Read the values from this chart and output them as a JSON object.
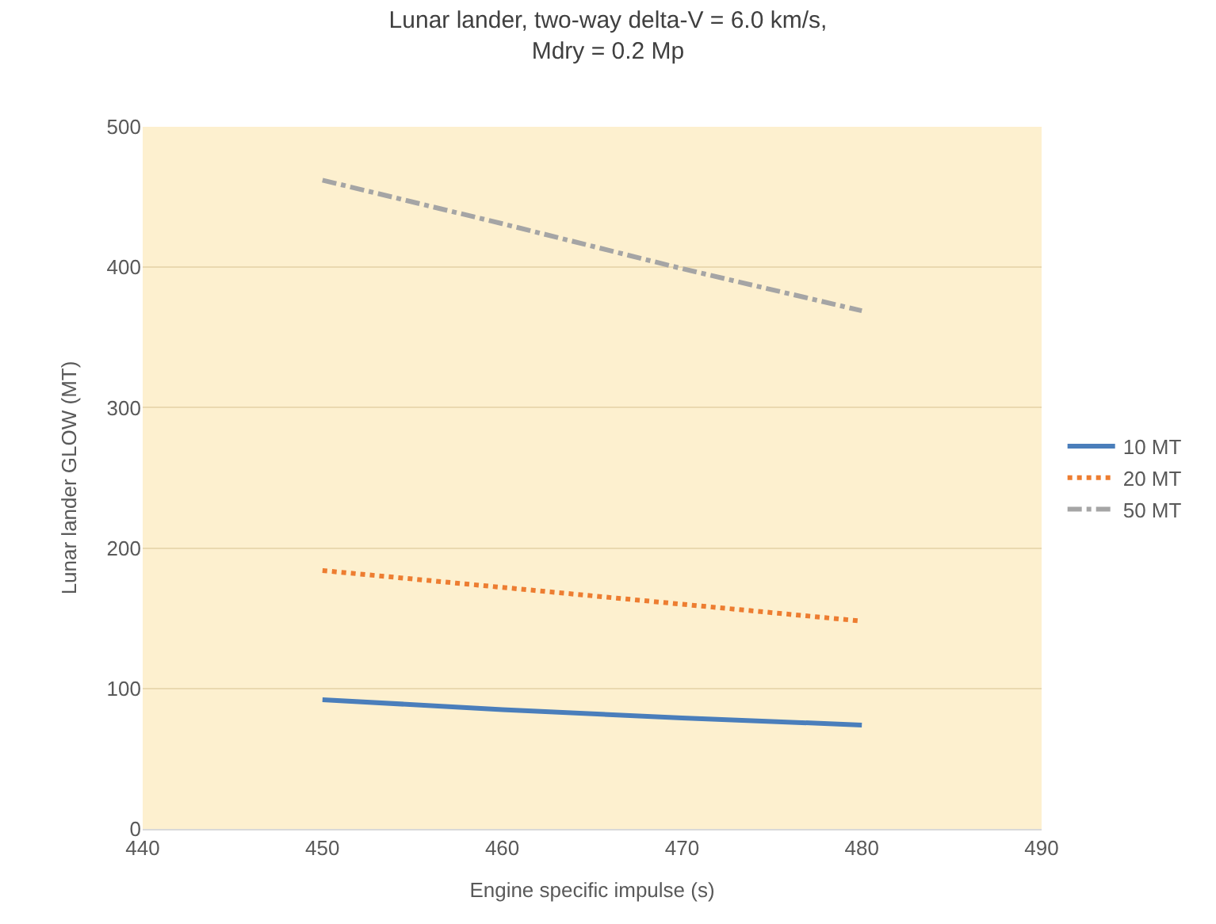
{
  "chart_data": {
    "type": "line",
    "title": "Lunar lander, two-way delta-V = 6.0 km/s,\nMdry = 0.2 Mp",
    "xlabel": "Engine specific impulse (s)",
    "ylabel": "Lunar lander GLOW (MT)",
    "x": [
      450,
      460,
      470,
      480
    ],
    "series": [
      {
        "name": "10 MT",
        "color": "#4a7ebb",
        "line_style": "solid",
        "values": [
          92,
          85,
          79,
          74
        ]
      },
      {
        "name": "20 MT",
        "color": "#ed7d31",
        "line_style": "dotted",
        "values": [
          184,
          172,
          160,
          148
        ]
      },
      {
        "name": "50 MT",
        "color": "#a5a5a5",
        "line_style": "dashdot",
        "values": [
          462,
          431,
          399,
          369
        ]
      }
    ],
    "xlim": [
      440,
      490
    ],
    "xticks": [
      440,
      450,
      460,
      470,
      480,
      490
    ],
    "ylim": [
      0,
      500
    ],
    "yticks": [
      0,
      100,
      200,
      300,
      400,
      500
    ],
    "grid": "y",
    "legend": "right",
    "marker": "none"
  }
}
